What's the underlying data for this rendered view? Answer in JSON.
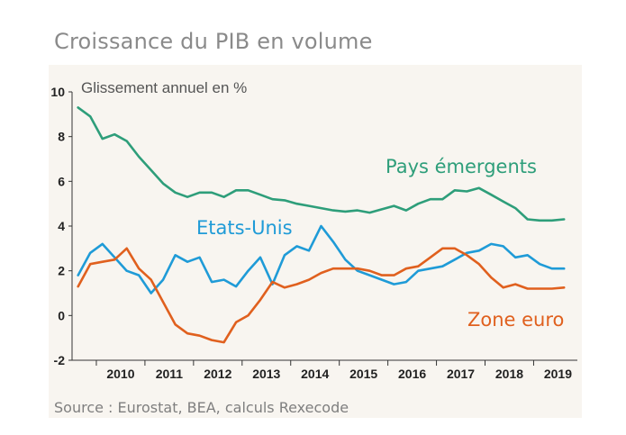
{
  "title": "Croissance du PIB en volume",
  "subtitle": "Glissement annuel en %",
  "source": "Source : Eurostat, BEA, calculs Rexecode",
  "colors": {
    "background_panel": "#f8f5f0",
    "emerging": "#2e9e7a",
    "us": "#1f9bd7",
    "euro": "#e0601e",
    "axis": "#333333"
  },
  "chart_data": {
    "type": "line",
    "title": "Croissance du PIB en volume",
    "ylabel": "Glissement annuel en %",
    "xlabel": "",
    "ylim": [
      -2,
      10
    ],
    "yticks": [
      -2,
      0,
      2,
      4,
      6,
      8,
      10
    ],
    "xlim": [
      2009.5,
      2019.9
    ],
    "xtick_labels": [
      "2010",
      "2011",
      "2012",
      "2013",
      "2014",
      "2015",
      "2016",
      "2017",
      "2018",
      "2019"
    ],
    "legend": "inline labels",
    "grid": false,
    "series": [
      {
        "name": "Pays émergents",
        "key": "emerging",
        "x": [
          2009.625,
          2009.875,
          2010.125,
          2010.375,
          2010.625,
          2010.875,
          2011.125,
          2011.375,
          2011.625,
          2011.875,
          2012.125,
          2012.375,
          2012.625,
          2012.875,
          2013.125,
          2013.375,
          2013.625,
          2013.875,
          2014.125,
          2014.375,
          2014.625,
          2014.875,
          2015.125,
          2015.375,
          2015.625,
          2015.875,
          2016.125,
          2016.375,
          2016.625,
          2016.875,
          2017.125,
          2017.375,
          2017.625,
          2017.875,
          2018.125,
          2018.375,
          2018.625,
          2018.875,
          2019.125,
          2019.375,
          2019.625
        ],
        "values": [
          9.3,
          8.9,
          7.9,
          8.1,
          7.8,
          7.1,
          6.5,
          5.9,
          5.5,
          5.3,
          5.5,
          5.5,
          5.3,
          5.6,
          5.6,
          5.4,
          5.2,
          5.15,
          5.0,
          4.9,
          4.8,
          4.7,
          4.65,
          4.7,
          4.6,
          4.75,
          4.9,
          4.7,
          5.0,
          5.2,
          5.2,
          5.6,
          5.55,
          5.7,
          5.4,
          5.1,
          4.8,
          4.3,
          4.25,
          4.25,
          4.3
        ]
      },
      {
        "name": "Etats-Unis",
        "key": "us",
        "x": [
          2009.625,
          2009.875,
          2010.125,
          2010.375,
          2010.625,
          2010.875,
          2011.125,
          2011.375,
          2011.625,
          2011.875,
          2012.125,
          2012.375,
          2012.625,
          2012.875,
          2013.125,
          2013.375,
          2013.625,
          2013.875,
          2014.125,
          2014.375,
          2014.625,
          2014.875,
          2015.125,
          2015.375,
          2015.625,
          2015.875,
          2016.125,
          2016.375,
          2016.625,
          2016.875,
          2017.125,
          2017.375,
          2017.625,
          2017.875,
          2018.125,
          2018.375,
          2018.625,
          2018.875,
          2019.125,
          2019.375,
          2019.625
        ],
        "values": [
          1.8,
          2.8,
          3.2,
          2.6,
          2.0,
          1.8,
          1.0,
          1.6,
          2.7,
          2.4,
          2.6,
          1.5,
          1.6,
          1.3,
          2.0,
          2.6,
          1.4,
          2.7,
          3.1,
          2.9,
          4.0,
          3.3,
          2.5,
          2.0,
          1.8,
          1.6,
          1.4,
          1.5,
          2.0,
          2.1,
          2.2,
          2.5,
          2.8,
          2.9,
          3.2,
          3.1,
          2.6,
          2.7,
          2.3,
          2.1,
          2.1
        ]
      },
      {
        "name": "Zone euro",
        "key": "euro",
        "x": [
          2009.625,
          2009.875,
          2010.125,
          2010.375,
          2010.625,
          2010.875,
          2011.125,
          2011.375,
          2011.625,
          2011.875,
          2012.125,
          2012.375,
          2012.625,
          2012.875,
          2013.125,
          2013.375,
          2013.625,
          2013.875,
          2014.125,
          2014.375,
          2014.625,
          2014.875,
          2015.125,
          2015.375,
          2015.625,
          2015.875,
          2016.125,
          2016.375,
          2016.625,
          2016.875,
          2017.125,
          2017.375,
          2017.625,
          2017.875,
          2018.125,
          2018.375,
          2018.625,
          2018.875,
          2019.125,
          2019.375,
          2019.625
        ],
        "values": [
          1.3,
          2.3,
          2.4,
          2.5,
          3.0,
          2.1,
          1.6,
          0.6,
          -0.4,
          -0.8,
          -0.9,
          -1.1,
          -1.2,
          -0.3,
          0.0,
          0.7,
          1.5,
          1.25,
          1.4,
          1.6,
          1.9,
          2.1,
          2.1,
          2.1,
          2.0,
          1.8,
          1.8,
          2.1,
          2.2,
          2.6,
          3.0,
          3.0,
          2.7,
          2.3,
          1.7,
          1.25,
          1.4,
          1.2,
          1.2,
          1.2,
          1.25
        ]
      }
    ],
    "annotations": [
      {
        "text": "Pays émergents",
        "series": "emerging"
      },
      {
        "text": "Etats-Unis",
        "series": "us"
      },
      {
        "text": "Zone euro",
        "series": "euro"
      }
    ]
  }
}
